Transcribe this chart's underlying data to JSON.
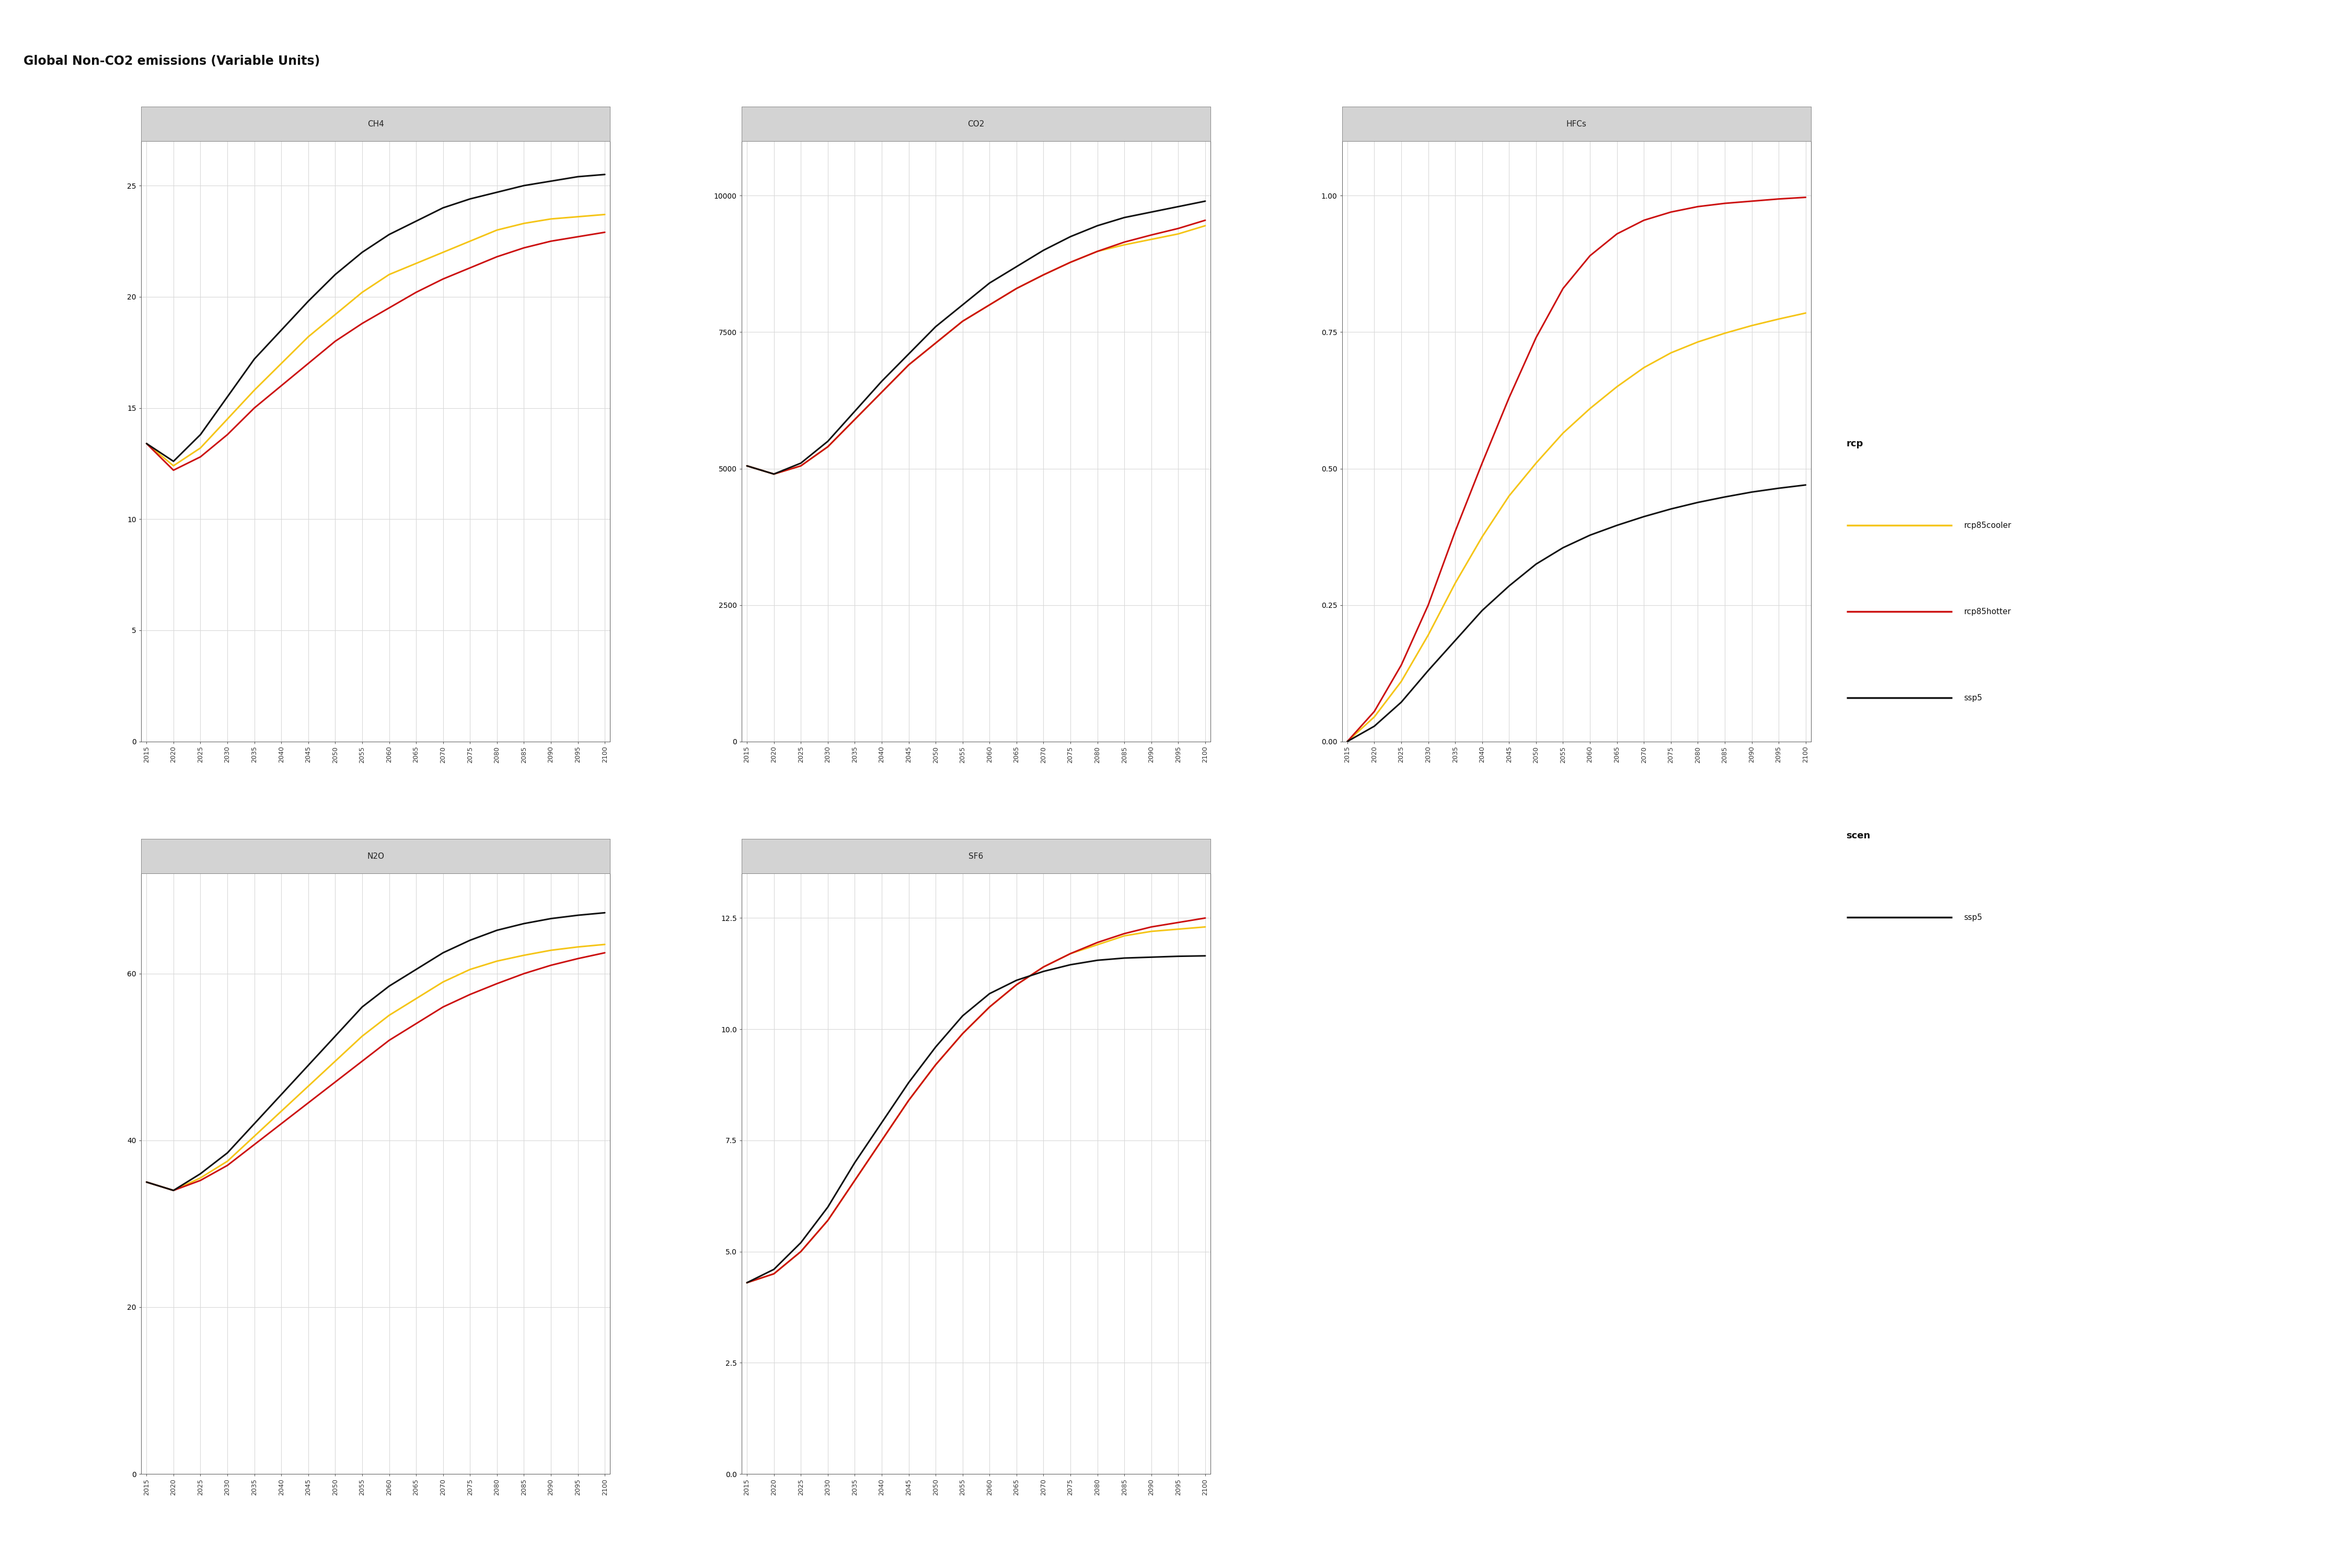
{
  "title": "Global Non-CO2 emissions (Variable Units)",
  "years": [
    2015,
    2020,
    2025,
    2030,
    2035,
    2040,
    2045,
    2050,
    2055,
    2060,
    2065,
    2070,
    2075,
    2080,
    2085,
    2090,
    2095,
    2100
  ],
  "subplots": {
    "CH4": {
      "rcp85cooler": [
        13.4,
        12.4,
        13.2,
        14.5,
        15.8,
        17.0,
        18.2,
        19.2,
        20.2,
        21.0,
        21.5,
        22.0,
        22.5,
        23.0,
        23.3,
        23.5,
        23.6,
        23.7
      ],
      "rcp85hotter": [
        13.4,
        12.2,
        12.8,
        13.8,
        15.0,
        16.0,
        17.0,
        18.0,
        18.8,
        19.5,
        20.2,
        20.8,
        21.3,
        21.8,
        22.2,
        22.5,
        22.7,
        22.9
      ],
      "ssp5": [
        13.4,
        12.6,
        13.8,
        15.5,
        17.2,
        18.5,
        19.8,
        21.0,
        22.0,
        22.8,
        23.4,
        24.0,
        24.4,
        24.7,
        25.0,
        25.2,
        25.4,
        25.5
      ],
      "ylim": [
        0,
        27
      ],
      "yticks": [
        0,
        5,
        10,
        15,
        20,
        25
      ]
    },
    "CO2": {
      "rcp85cooler": [
        5050,
        4900,
        5050,
        5400,
        5900,
        6400,
        6900,
        7300,
        7700,
        8000,
        8300,
        8550,
        8780,
        8980,
        9100,
        9200,
        9300,
        9450
      ],
      "rcp85hotter": [
        5050,
        4900,
        5050,
        5400,
        5900,
        6400,
        6900,
        7300,
        7700,
        8000,
        8300,
        8550,
        8780,
        8980,
        9150,
        9280,
        9400,
        9550
      ],
      "ssp5": [
        5050,
        4900,
        5100,
        5500,
        6050,
        6600,
        7100,
        7600,
        8000,
        8400,
        8700,
        9000,
        9250,
        9450,
        9600,
        9700,
        9800,
        9900
      ],
      "ylim": [
        0,
        11000
      ],
      "yticks": [
        0,
        2500,
        5000,
        7500,
        10000
      ]
    },
    "HFCs": {
      "rcp85cooler": [
        0,
        45000,
        110000,
        195000,
        290000,
        375000,
        450000,
        510000,
        565000,
        610000,
        650000,
        685000,
        712000,
        732000,
        748000,
        762000,
        774000,
        785000
      ],
      "rcp85hotter": [
        0,
        55000,
        140000,
        250000,
        385000,
        510000,
        630000,
        740000,
        830000,
        890000,
        930000,
        955000,
        970000,
        980000,
        986000,
        990000,
        994000,
        997000
      ],
      "ssp5": [
        0,
        28000,
        72000,
        130000,
        185000,
        240000,
        285000,
        325000,
        355000,
        378000,
        396000,
        412000,
        426000,
        438000,
        448000,
        457000,
        464000,
        470000
      ],
      "ylim": [
        0,
        1100000
      ],
      "yticks": [
        0,
        250000,
        500000,
        750000,
        1000000
      ]
    },
    "N2O": {
      "rcp85cooler": [
        35.0,
        34.0,
        35.5,
        37.5,
        40.5,
        43.5,
        46.5,
        49.5,
        52.5,
        55.0,
        57.0,
        59.0,
        60.5,
        61.5,
        62.2,
        62.8,
        63.2,
        63.5
      ],
      "rcp85hotter": [
        35.0,
        34.0,
        35.2,
        37.0,
        39.5,
        42.0,
        44.5,
        47.0,
        49.5,
        52.0,
        54.0,
        56.0,
        57.5,
        58.8,
        60.0,
        61.0,
        61.8,
        62.5
      ],
      "ssp5": [
        35.0,
        34.0,
        36.0,
        38.5,
        42.0,
        45.5,
        49.0,
        52.5,
        56.0,
        58.5,
        60.5,
        62.5,
        64.0,
        65.2,
        66.0,
        66.6,
        67.0,
        67.3
      ],
      "ylim": [
        0,
        72
      ],
      "yticks": [
        0,
        20,
        40,
        60
      ]
    },
    "SF6": {
      "rcp85cooler": [
        4.3,
        4.5,
        5.0,
        5.7,
        6.6,
        7.5,
        8.4,
        9.2,
        9.9,
        10.5,
        11.0,
        11.4,
        11.7,
        11.9,
        12.1,
        12.2,
        12.25,
        12.3
      ],
      "rcp85hotter": [
        4.3,
        4.5,
        5.0,
        5.7,
        6.6,
        7.5,
        8.4,
        9.2,
        9.9,
        10.5,
        11.0,
        11.4,
        11.7,
        11.95,
        12.15,
        12.3,
        12.4,
        12.5
      ],
      "ssp5": [
        4.3,
        4.6,
        5.2,
        6.0,
        7.0,
        7.9,
        8.8,
        9.6,
        10.3,
        10.8,
        11.1,
        11.3,
        11.45,
        11.55,
        11.6,
        11.62,
        11.64,
        11.65
      ],
      "ylim": [
        0,
        13.5
      ],
      "yticks": [
        0,
        2.5,
        5.0,
        7.5,
        10.0,
        12.5
      ]
    }
  },
  "colors": {
    "rcp85cooler": "#F5C518",
    "rcp85hotter": "#CC1111",
    "ssp5": "#111111"
  },
  "linewidth": 2.2,
  "subplot_bg": "#ffffff",
  "plot_bg": "#ffffff",
  "grid_color": "#d8d8d8",
  "title_strip_color": "#d3d3d3",
  "title_strip_border": "#888888"
}
